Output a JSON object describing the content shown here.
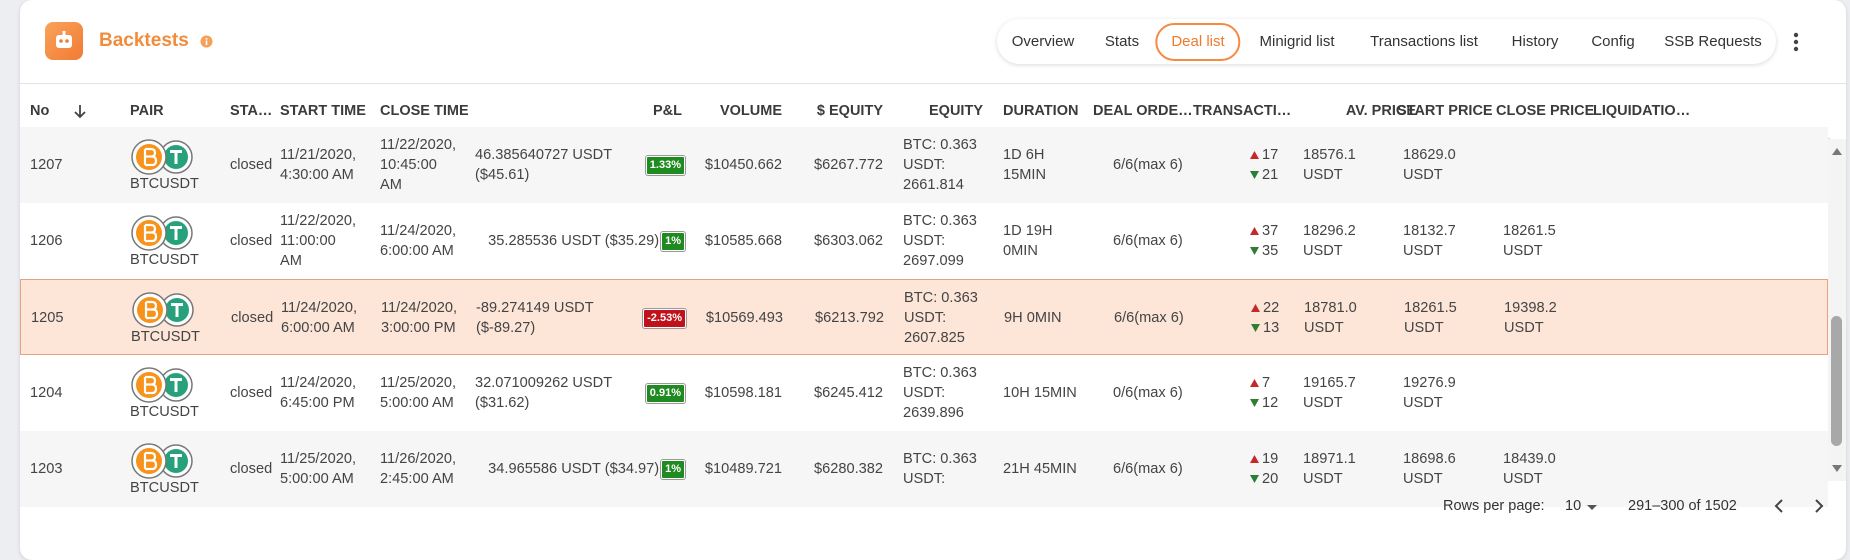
{
  "header": {
    "title": "Backtests"
  },
  "tabs": [
    "Overview",
    "Stats",
    "Deal list",
    "Minigrid list",
    "Transactions list",
    "History",
    "Config",
    "SSB Requests"
  ],
  "active_tab": 2,
  "table": {
    "columns": [
      "No",
      "PAIR",
      "STA…",
      "START TIME",
      "CLOSE TIME",
      "P&L",
      "VOLUME",
      "$ EQUITY",
      "EQUITY",
      "DURATION",
      "DEAL ORDE…",
      "TRANSACTI…",
      "AV. PRICE",
      "START PRICE",
      "CLOSE PRICE",
      "LIQUIDATIO…"
    ],
    "highlighted_row": 2,
    "rows": [
      {
        "no": "1207",
        "pair": "BTCUSDT",
        "status": "closed",
        "start_time": "11/21/2020, 4:30:00 AM",
        "close_time": "11/22/2020, 10:45:00 AM",
        "pnl": "46.385640727 USDT ($45.61)",
        "pnl_pct": "1.33%",
        "volume": "$10450.662",
        "usd_equity": "$6267.772",
        "equity": "BTC: 0.363 USDT: 2661.814",
        "duration": "1D 6H 15MIN",
        "deal_orders": "6/6(max 6)",
        "tx_up": "17",
        "tx_down": "21",
        "av_price": "18576.1 USDT",
        "start_price": "18629.0 USDT"
      },
      {
        "no": "1206",
        "pair": "BTCUSDT",
        "status": "closed",
        "start_time": "11/22/2020, 11:00:00 AM",
        "close_time": "11/24/2020, 6:00:00 AM",
        "pnl": "35.285536 USDT ($35.29)",
        "pnl_pct": "1%",
        "volume": "$10585.668",
        "usd_equity": "$6303.062",
        "equity": "BTC: 0.363 USDT: 2697.099",
        "duration": "1D 19H 0MIN",
        "deal_orders": "6/6(max 6)",
        "tx_up": "37",
        "tx_down": "35",
        "av_price": "18296.2 USDT",
        "start_price": "18132.7 USDT",
        "close_price": "18261.5 USDT"
      },
      {
        "no": "1205",
        "pair": "BTCUSDT",
        "status": "closed",
        "start_time": "11/24/2020, 6:00:00 AM",
        "close_time": "11/24/2020, 3:00:00 PM",
        "pnl": "-89.274149 USDT ($-89.27)",
        "pnl_pct": "-2.53%",
        "volume": "$10569.493",
        "usd_equity": "$6213.792",
        "equity": "BTC: 0.363 USDT: 2607.825",
        "duration": "9H 0MIN",
        "deal_orders": "6/6(max 6)",
        "tx_up": "22",
        "tx_down": "13",
        "av_price": "18781.0 USDT",
        "start_price": "18261.5 USDT",
        "close_price": "19398.2 USDT"
      },
      {
        "no": "1204",
        "pair": "BTCUSDT",
        "status": "closed",
        "start_time": "11/24/2020, 6:45:00 PM",
        "close_time": "11/25/2020, 5:00:00 AM",
        "pnl": "32.071009262 USDT ($31.62)",
        "pnl_pct": "0.91%",
        "volume": "$10598.181",
        "usd_equity": "$6245.412",
        "equity": "BTC: 0.363 USDT: 2639.896",
        "duration": "10H 15MIN",
        "deal_orders": "0/6(max 6)",
        "tx_up": "7",
        "tx_down": "12",
        "av_price": "19165.7 USDT",
        "start_price": "19276.9 USDT"
      },
      {
        "no": "1203",
        "pair": "BTCUSDT",
        "status": "closed",
        "start_time": "11/25/2020, 5:00:00 AM",
        "close_time": "11/26/2020, 2:45:00 AM",
        "pnl": "34.965586 USDT ($34.97)",
        "pnl_pct": "1%",
        "volume": "$10489.721",
        "usd_equity": "$6280.382",
        "equity": "BTC: 0.363 USDT:",
        "duration": "21H 45MIN",
        "deal_orders": "6/6(max 6)",
        "tx_up": "19",
        "tx_down": "20",
        "av_price": "18971.1 USDT",
        "start_price": "18698.6 USDT",
        "close_price": "18439.0 USDT"
      }
    ]
  },
  "footer": {
    "rows_per_page_label": "Rows per page:",
    "rows_per_page": "10",
    "range": "291–300 of 1502"
  }
}
